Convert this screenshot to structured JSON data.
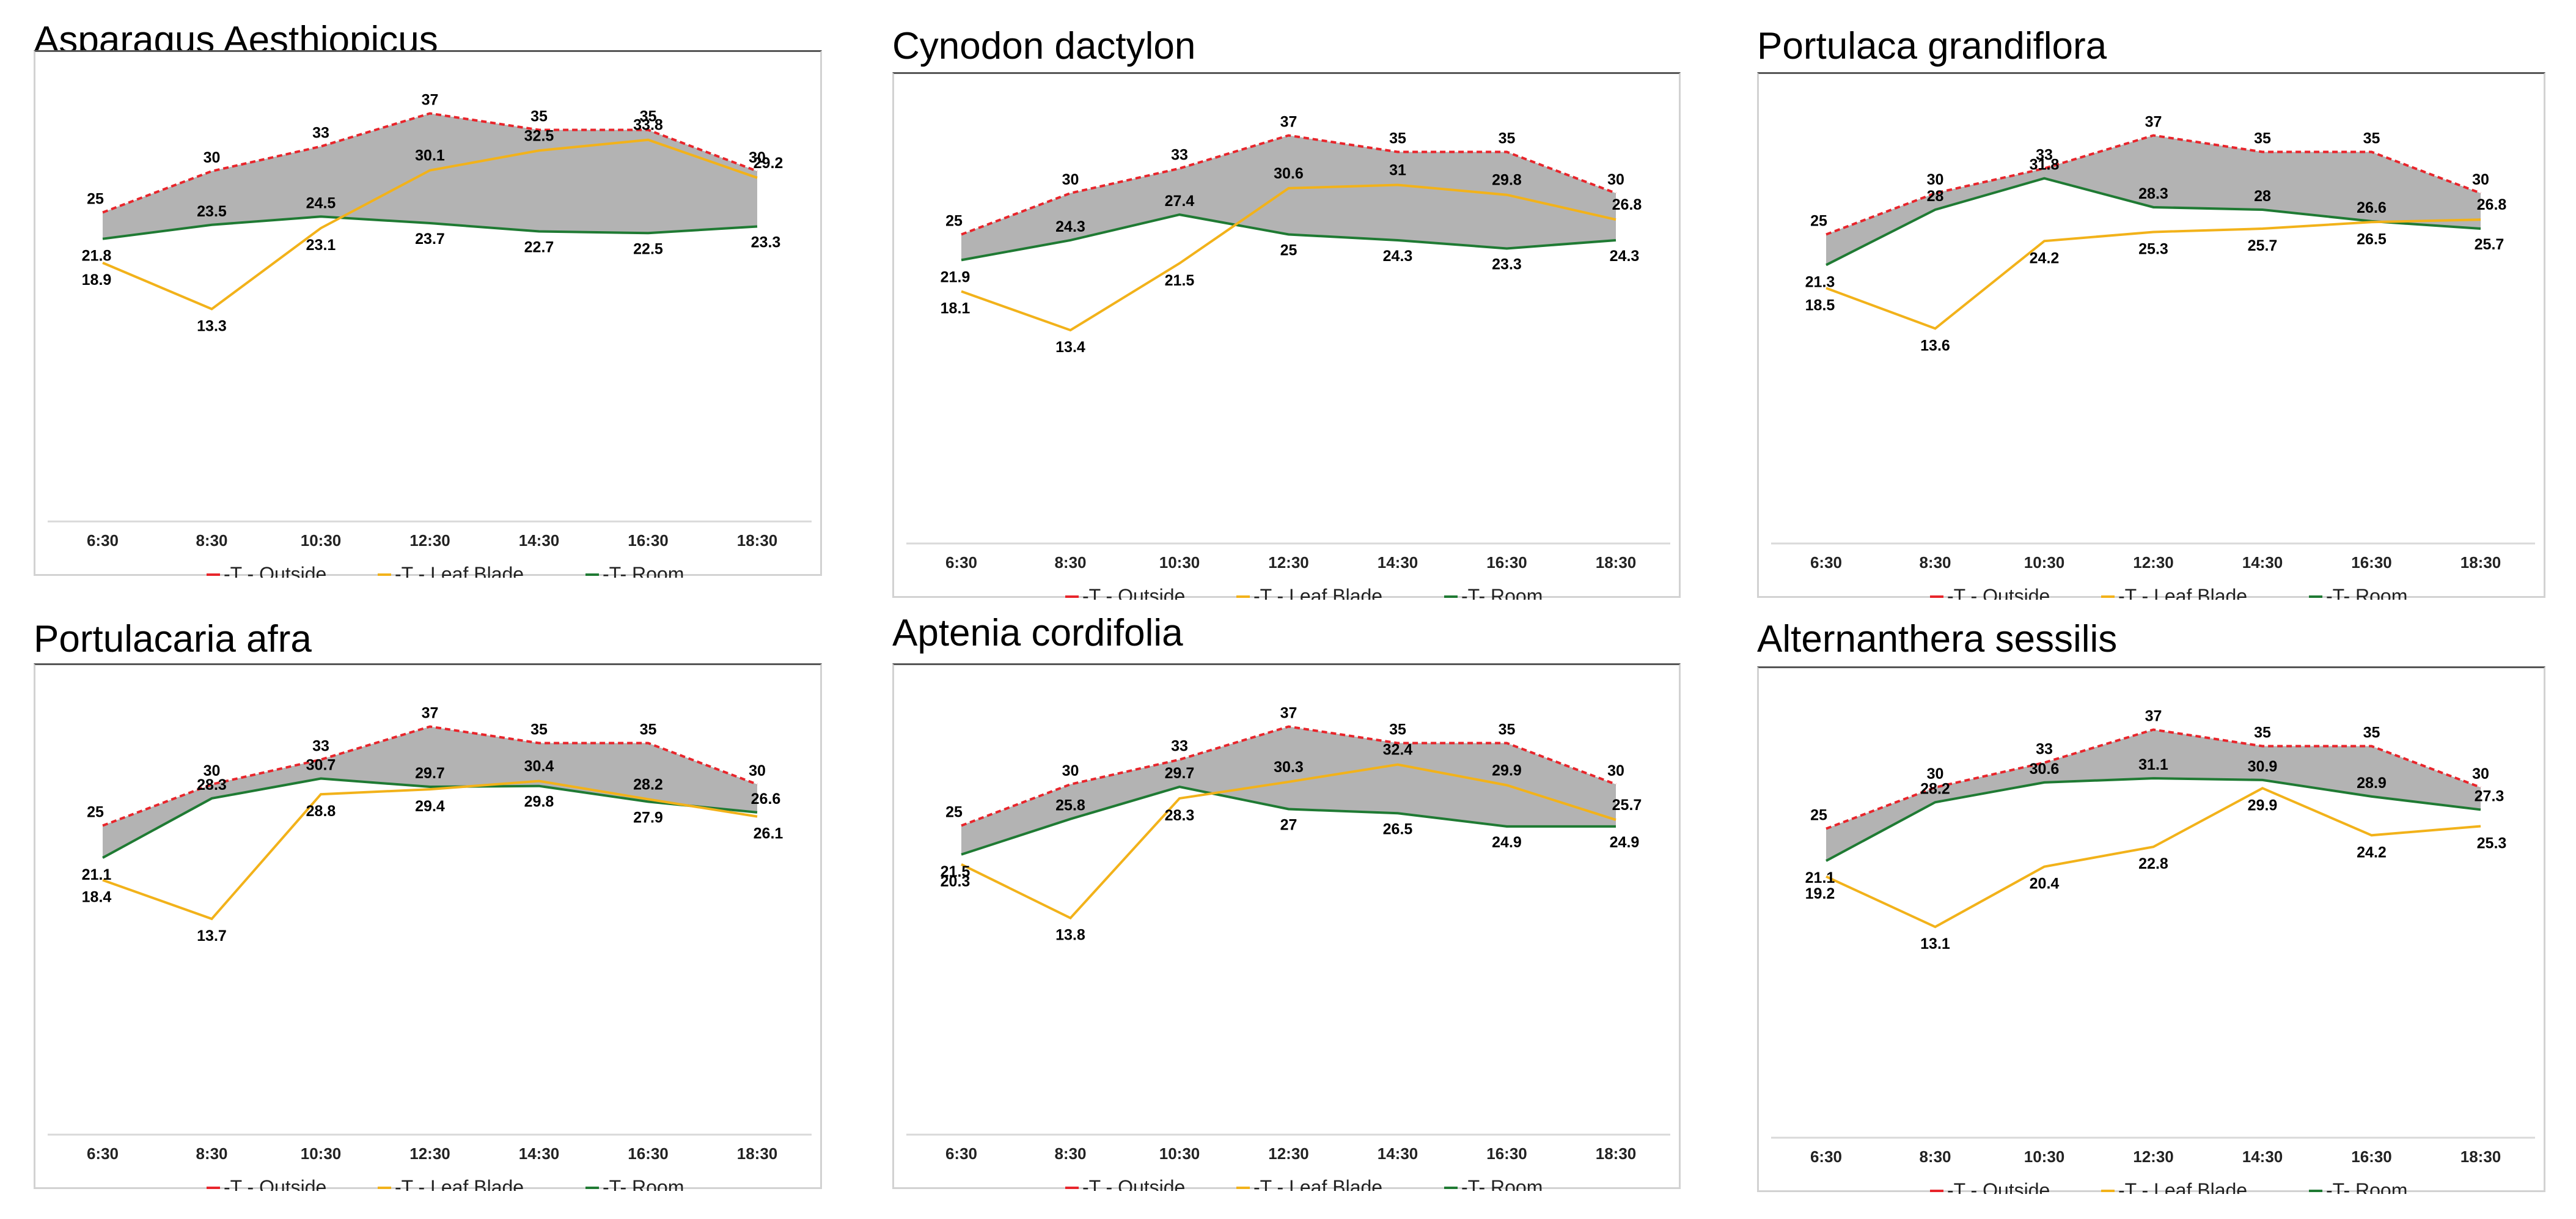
{
  "chart_data": [
    {
      "type": "line",
      "title": "Asparagus Aesthiopicus",
      "categories": [
        "6:30",
        "8:30",
        "10:30",
        "12:30",
        "14:30",
        "16:30",
        "18:30"
      ],
      "series": [
        {
          "name": "-T - Outside",
          "values": [
            25,
            30,
            33,
            37,
            35,
            35,
            30
          ]
        },
        {
          "name": "-T - Leaf Blade",
          "values": [
            18.9,
            13.3,
            23.1,
            30.1,
            32.5,
            33.8,
            29.2
          ]
        },
        {
          "name": "-T- Room",
          "values": [
            21.8,
            23.5,
            24.5,
            23.7,
            22.7,
            22.5,
            23.3
          ]
        }
      ],
      "ylim": [
        0,
        40
      ]
    },
    {
      "type": "line",
      "title": "Cynodon dactylon",
      "categories": [
        "6:30",
        "8:30",
        "10:30",
        "12:30",
        "14:30",
        "16:30",
        "18:30"
      ],
      "series": [
        {
          "name": "-T - Outside",
          "values": [
            25,
            30,
            33,
            37,
            35,
            35,
            30
          ]
        },
        {
          "name": "-T - Leaf Blade",
          "values": [
            18.1,
            13.4,
            21.5,
            30.6,
            31,
            29.8,
            26.8
          ]
        },
        {
          "name": "-T- Room",
          "values": [
            21.9,
            24.3,
            27.4,
            25,
            24.3,
            23.3,
            24.3
          ]
        }
      ],
      "ylim": [
        0,
        40
      ]
    },
    {
      "type": "line",
      "title": "Portulaca grandiflora",
      "categories": [
        "6:30",
        "8:30",
        "10:30",
        "12:30",
        "14:30",
        "16:30",
        "18:30"
      ],
      "series": [
        {
          "name": "-T - Outside",
          "values": [
            25,
            30,
            33,
            37,
            35,
            35,
            30
          ]
        },
        {
          "name": "-T - Leaf Blade",
          "values": [
            18.5,
            13.6,
            24.2,
            25.3,
            25.7,
            26.5,
            26.8
          ]
        },
        {
          "name": "-T- Room",
          "values": [
            21.3,
            28,
            31.8,
            28.3,
            28,
            26.6,
            25.7
          ]
        }
      ],
      "ylim": [
        0,
        40
      ]
    },
    {
      "type": "line",
      "title": "Portulacaria afra",
      "categories": [
        "6:30",
        "8:30",
        "10:30",
        "12:30",
        "14:30",
        "16:30",
        "18:30"
      ],
      "series": [
        {
          "name": "-T - Outside",
          "values": [
            25,
            30,
            33,
            37,
            35,
            35,
            30
          ]
        },
        {
          "name": "-T - Leaf Blade",
          "values": [
            18.4,
            13.7,
            28.8,
            29.4,
            30.4,
            28.2,
            26.1
          ]
        },
        {
          "name": "-T- Room",
          "values": [
            21.1,
            28.3,
            30.7,
            29.7,
            29.8,
            27.9,
            26.6
          ]
        }
      ],
      "ylim": [
        0,
        40
      ]
    },
    {
      "type": "line",
      "title": "Aptenia cordifolia",
      "categories": [
        "6:30",
        "8:30",
        "10:30",
        "12:30",
        "14:30",
        "16:30",
        "18:30"
      ],
      "series": [
        {
          "name": "-T - Outside",
          "values": [
            25,
            30,
            33,
            37,
            35,
            35,
            30
          ]
        },
        {
          "name": "-T - Leaf Blade",
          "values": [
            20.3,
            13.8,
            28.3,
            30.3,
            32.4,
            29.9,
            25.7
          ]
        },
        {
          "name": "-T- Room",
          "values": [
            21.5,
            25.8,
            29.7,
            27,
            26.5,
            24.9,
            24.9
          ]
        }
      ],
      "ylim": [
        0,
        40
      ]
    },
    {
      "type": "line",
      "title": "Alternanthera sessilis",
      "categories": [
        "6:30",
        "8:30",
        "10:30",
        "12:30",
        "14:30",
        "16:30",
        "18:30"
      ],
      "series": [
        {
          "name": "-T - Outside",
          "values": [
            25,
            30,
            33,
            37,
            35,
            35,
            30
          ]
        },
        {
          "name": "-T - Leaf Blade",
          "values": [
            19.2,
            13.1,
            20.4,
            22.8,
            29.9,
            24.2,
            25.3
          ]
        },
        {
          "name": "-T- Room",
          "values": [
            21.1,
            28.2,
            30.6,
            31.1,
            30.9,
            28.9,
            27.3
          ]
        }
      ],
      "ylim": [
        0,
        40
      ]
    }
  ],
  "colors": {
    "outside": "#e8252b",
    "leaf": "#f2b21a",
    "leaf_dark": "#d98e1f",
    "room": "#1f7a33",
    "fill": "#b3b3b3",
    "axis": "#d9d9d9"
  }
}
